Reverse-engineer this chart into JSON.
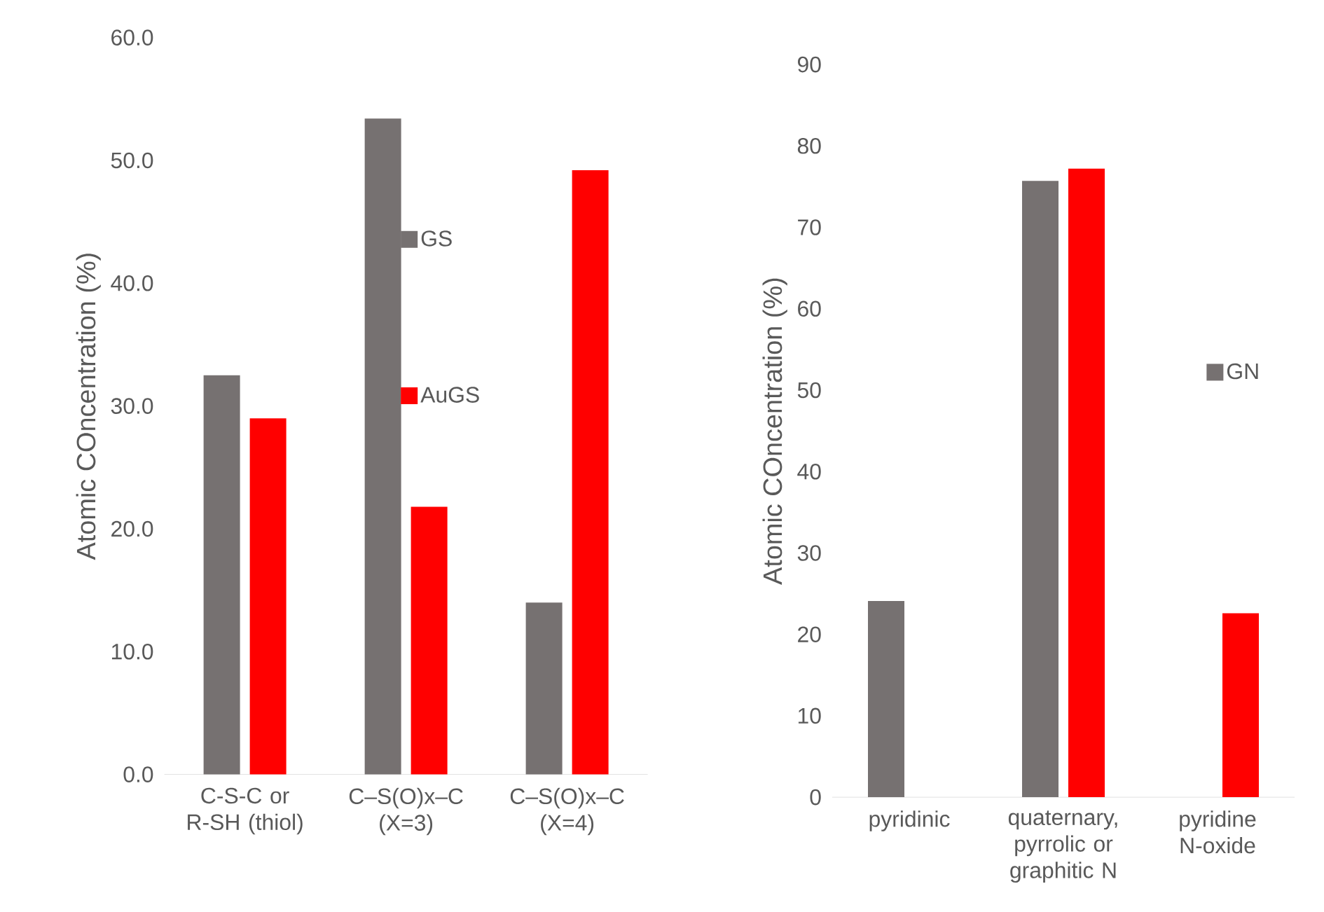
{
  "chart_data": [
    {
      "type": "bar",
      "ylabel": "Atomic COncentration (%)",
      "categories": [
        "C-S-C or R-SH (thiol)",
        "C–S(O)x–C (X=3)",
        "C–S(O)x–C (X=4)"
      ],
      "series": [
        {
          "name": "GS",
          "color": "#767171",
          "values": [
            32.5,
            53.4,
            14.0
          ]
        },
        {
          "name": "AuGS",
          "color": "#ff0000",
          "values": [
            29.0,
            21.8,
            49.2
          ]
        }
      ],
      "ylim": [
        0,
        60
      ],
      "yticks": [
        {
          "value": 0,
          "label": "0.0"
        },
        {
          "value": 10,
          "label": "10.0"
        },
        {
          "value": 20,
          "label": "20.0"
        },
        {
          "value": 30,
          "label": "30.0"
        },
        {
          "value": 40,
          "label": "40.0"
        },
        {
          "value": 50,
          "label": "50.0"
        },
        {
          "value": 60,
          "label": "60.0"
        }
      ],
      "legend": "center"
    },
    {
      "type": "bar",
      "ylabel": "Atomic COncentration (%)",
      "categories": [
        "pyridinic",
        "quaternary, pyrrolic or graphitic N",
        "pyridine N-oxide"
      ],
      "series": [
        {
          "name": "GN",
          "color": "#767171",
          "values": [
            24.1,
            75.7,
            null
          ]
        },
        {
          "color": "#ff0000",
          "values": [
            null,
            77.2,
            22.6
          ]
        }
      ],
      "ylim": [
        0,
        90
      ],
      "yticks": [
        0,
        10,
        20,
        30,
        40,
        50,
        60,
        70,
        80,
        90
      ],
      "legend": "right"
    }
  ]
}
